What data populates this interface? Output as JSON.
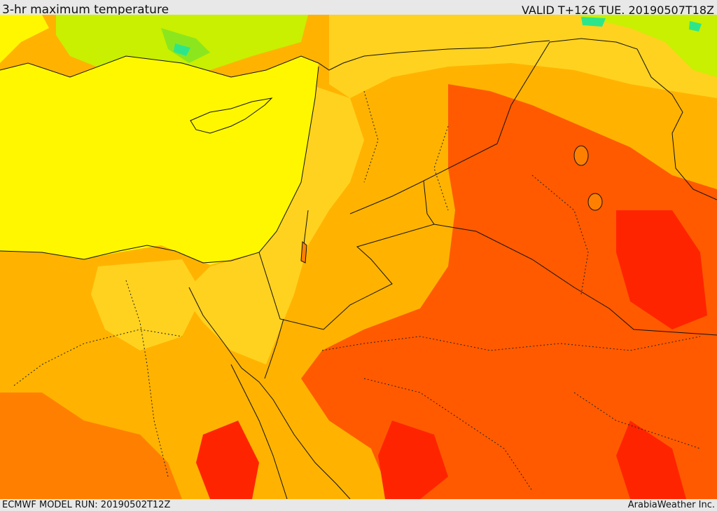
{
  "header": {
    "title": "3-hr maximum temperature",
    "valid": "VALID T+126 TUE. 20190507T18Z"
  },
  "footer": {
    "model_run": "ECMWF MODEL RUN: 20190502T12Z",
    "credit": "ArabiaWeather Inc."
  },
  "colors": {
    "sea": "#fff700",
    "warm": "#ffd21f",
    "orange": "#ffb300",
    "hot": "#ff8000",
    "very_hot": "#ff5a00",
    "extreme": "#ff2400",
    "cool": "#c8f000",
    "cooler": "#8ce61e",
    "cold": "#2ee68a"
  }
}
